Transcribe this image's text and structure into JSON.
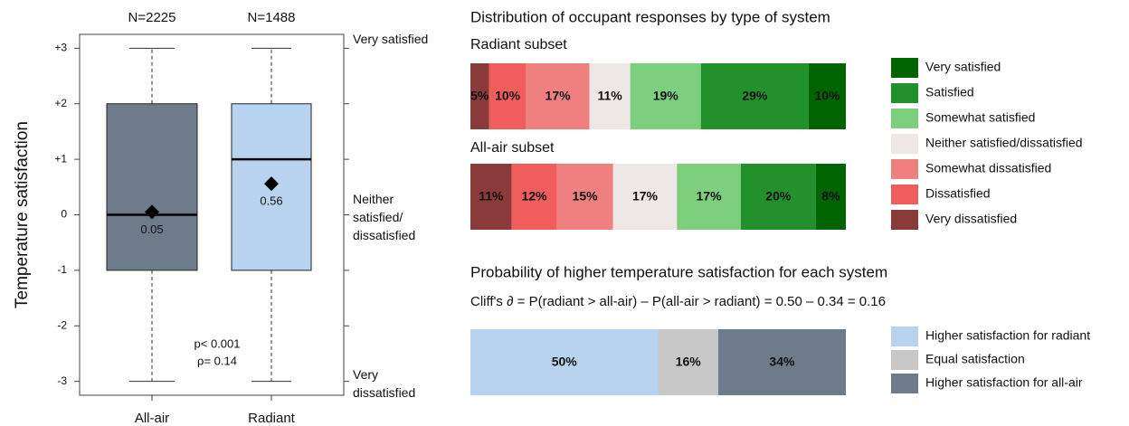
{
  "chart_data": [
    {
      "type": "box",
      "y_label": "Temperature satisfaction",
      "categories": [
        "All-air",
        "Radiant"
      ],
      "n_labels": [
        "N=2225",
        "N=1488"
      ],
      "boxes": [
        {
          "whislo": -3,
          "q1": -1,
          "med": 0,
          "q3": 2,
          "whishi": 3,
          "mean": 0.05,
          "color": "#6e7b8b"
        },
        {
          "whislo": -3,
          "q1": -1,
          "med": 1,
          "q3": 2,
          "whishi": 3,
          "mean": 0.56,
          "color": "#b8d3ef"
        }
      ],
      "ylim": [
        -3.25,
        3.25
      ],
      "yticks": [
        {
          "value": 3,
          "label": "+3"
        },
        {
          "value": 2,
          "label": "+2"
        },
        {
          "value": 1,
          "label": "+1"
        },
        0,
        -1,
        -2,
        -3
      ],
      "y2ticks": [
        3,
        2,
        1,
        0,
        -1,
        -2,
        -3
      ],
      "y2_labels": [
        {
          "value": 3,
          "label": "Very satisfied"
        },
        {
          "value": 0,
          "label": "Neither satisfied/ dissatisfied"
        },
        {
          "value": -3,
          "label": "Very dissatisfied"
        }
      ],
      "annotations": [
        "p< 0.001",
        "ρ= 0.14"
      ]
    },
    {
      "type": "stacked_hbar",
      "title": "Distribution of occupant responses by type of system",
      "categories": [
        "Radiant subset",
        "All-air subset"
      ],
      "series": [
        {
          "name": "Very dissatisfied",
          "color": "#8b3a3a",
          "values": [
            5,
            11
          ],
          "value_labels": [
            "5%",
            "11%"
          ]
        },
        {
          "name": "Dissatisfied",
          "color": "#ef5d5d",
          "values": [
            10,
            12
          ],
          "value_labels": [
            "10%",
            "12%"
          ]
        },
        {
          "name": "Somewhat dissatisfied",
          "color": "#f08080",
          "values": [
            17,
            15
          ],
          "value_labels": [
            "17%",
            "15%"
          ]
        },
        {
          "name": "Neither satisfied/dissatisfied",
          "color": "#ede8e6",
          "values": [
            11,
            17
          ],
          "value_labels": [
            "11%",
            "17%"
          ]
        },
        {
          "name": "Somewhat satisfied",
          "color": "#7ccf7c",
          "values": [
            19,
            17
          ],
          "value_labels": [
            "19%",
            "17%"
          ]
        },
        {
          "name": "Satisfied",
          "color": "#22902b",
          "values": [
            29,
            20
          ],
          "value_labels": [
            "29%",
            "20%"
          ]
        },
        {
          "name": "Very satisfied",
          "color": "#006400",
          "values": [
            10,
            8
          ],
          "value_labels": [
            "10%",
            "8%"
          ]
        }
      ]
    },
    {
      "type": "stacked_hbar_single",
      "title": "Probability of higher temperature satisfaction for each system",
      "subtitle": "Cliff's ∂ = P(radiant > all-air) – P(all-air > radiant) = 0.50 – 0.34 = 0.16",
      "series": [
        {
          "name": "Higher satisfaction for radiant",
          "color": "#b8d3ef",
          "values": [
            50
          ],
          "value_labels": [
            "50%"
          ]
        },
        {
          "name": "Equal satisfaction",
          "color": "#c8c8c8",
          "values": [
            16
          ],
          "value_labels": [
            "16%"
          ]
        },
        {
          "name": "Higher satisfaction for all-air",
          "color": "#6e7b8b",
          "values": [
            34
          ],
          "value_labels": [
            "34%"
          ]
        }
      ]
    }
  ]
}
